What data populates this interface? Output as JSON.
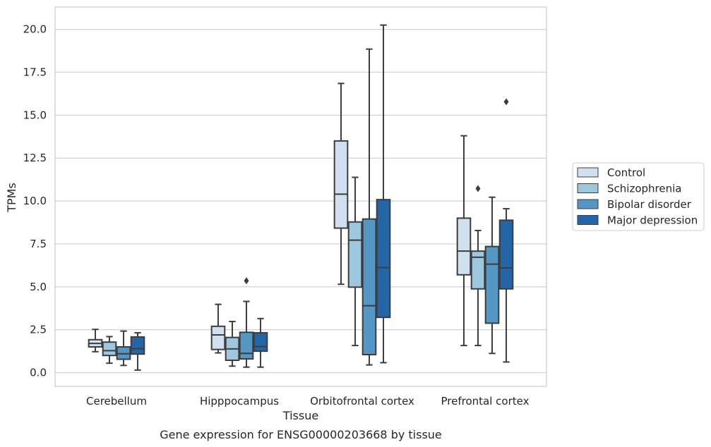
{
  "chart_data": {
    "type": "box",
    "xlabel": "Tissue",
    "ylabel": "TPMs",
    "caption": "Gene expression for ENSG00000203668 by tissue",
    "ylim": [
      -0.8,
      21.3
    ],
    "yticks": [
      "0.0",
      "2.5",
      "5.0",
      "7.5",
      "10.0",
      "12.5",
      "15.0",
      "17.5",
      "20.0"
    ],
    "grid": "horizontal",
    "legend_position": "right",
    "categories": [
      "Cerebellum",
      "Hipppocampus",
      "Orbitofrontal cortex",
      "Prefrontal cortex"
    ],
    "series": [
      {
        "name": "Control",
        "color": "#d0e0f1",
        "boxes": [
          {
            "whislo": 1.22,
            "q1": 1.5,
            "med": 1.7,
            "q3": 1.92,
            "whishi": 2.52,
            "fliers": []
          },
          {
            "whislo": 1.15,
            "q1": 1.35,
            "med": 2.2,
            "q3": 2.7,
            "whishi": 3.98,
            "fliers": []
          },
          {
            "whislo": 5.15,
            "q1": 8.42,
            "med": 10.4,
            "q3": 13.5,
            "whishi": 16.85,
            "fliers": []
          },
          {
            "whislo": 1.58,
            "q1": 5.7,
            "med": 7.08,
            "q3": 9.0,
            "whishi": 13.8,
            "fliers": []
          }
        ]
      },
      {
        "name": "Schizophrenia",
        "color": "#9dc6df",
        "boxes": [
          {
            "whislo": 0.55,
            "q1": 1.0,
            "med": 1.28,
            "q3": 1.78,
            "whishi": 2.1,
            "fliers": []
          },
          {
            "whislo": 0.38,
            "q1": 0.72,
            "med": 1.38,
            "q3": 2.05,
            "whishi": 2.98,
            "fliers": []
          },
          {
            "whislo": 1.58,
            "q1": 4.98,
            "med": 7.72,
            "q3": 8.78,
            "whishi": 11.38,
            "fliers": []
          },
          {
            "whislo": 1.58,
            "q1": 4.88,
            "med": 6.72,
            "q3": 7.08,
            "whishi": 8.28,
            "fliers": [
              10.72
            ]
          }
        ]
      },
      {
        "name": "Bipolar disorder",
        "color": "#5496c4",
        "boxes": [
          {
            "whislo": 0.42,
            "q1": 0.78,
            "med": 1.1,
            "q3": 1.5,
            "whishi": 2.42,
            "fliers": []
          },
          {
            "whislo": 0.32,
            "q1": 0.8,
            "med": 1.12,
            "q3": 2.35,
            "whishi": 4.15,
            "fliers": [
              5.35
            ]
          },
          {
            "whislo": 0.45,
            "q1": 1.05,
            "med": 3.9,
            "q3": 8.95,
            "whishi": 18.85,
            "fliers": []
          },
          {
            "whislo": 1.12,
            "q1": 2.88,
            "med": 6.32,
            "q3": 7.35,
            "whishi": 10.22,
            "fliers": []
          }
        ]
      },
      {
        "name": "Major depression",
        "color": "#2465a7",
        "boxes": [
          {
            "whislo": 0.15,
            "q1": 1.08,
            "med": 1.4,
            "q3": 2.08,
            "whishi": 2.32,
            "fliers": []
          },
          {
            "whislo": 0.32,
            "q1": 1.25,
            "med": 1.52,
            "q3": 2.32,
            "whishi": 3.15,
            "fliers": []
          },
          {
            "whislo": 0.58,
            "q1": 3.22,
            "med": 6.12,
            "q3": 10.08,
            "whishi": 20.25,
            "fliers": []
          },
          {
            "whislo": 0.62,
            "q1": 4.88,
            "med": 6.1,
            "q3": 8.88,
            "whishi": 9.55,
            "fliers": [
              15.78
            ]
          }
        ]
      }
    ]
  }
}
